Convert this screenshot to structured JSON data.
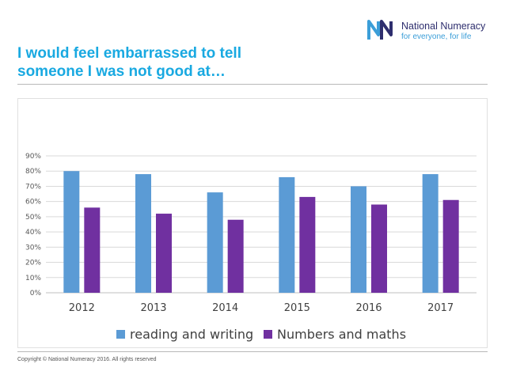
{
  "logo": {
    "name": "National Numeracy",
    "tagline": "for everyone, for life"
  },
  "title_lines": [
    "I would feel embarrassed to tell",
    "someone I was not good at…"
  ],
  "footer": {
    "copyright": "Copyright © National Numeracy 2016.  All rights reserved"
  },
  "colors": {
    "title": "#19a9e1",
    "series1": "#5b9bd5",
    "series2": "#7030a0"
  },
  "chart_data": {
    "type": "bar",
    "title": "I would feel embarrassed to tell someone I was not good at…",
    "categories": [
      "2012",
      "2013",
      "2014",
      "2015",
      "2016",
      "2017"
    ],
    "series": [
      {
        "name": "reading and writing",
        "values": [
          80,
          78,
          66,
          76,
          70,
          78
        ],
        "color": "#5b9bd5"
      },
      {
        "name": "Numbers and maths",
        "values": [
          56,
          52,
          48,
          63,
          58,
          61
        ],
        "color": "#7030a0"
      }
    ],
    "yticks": [
      "0%",
      "10%",
      "20%",
      "30%",
      "40%",
      "50%",
      "60%",
      "70%",
      "80%",
      "90%"
    ],
    "ylim": [
      0,
      90
    ],
    "grid": true,
    "legend": "bottom"
  }
}
